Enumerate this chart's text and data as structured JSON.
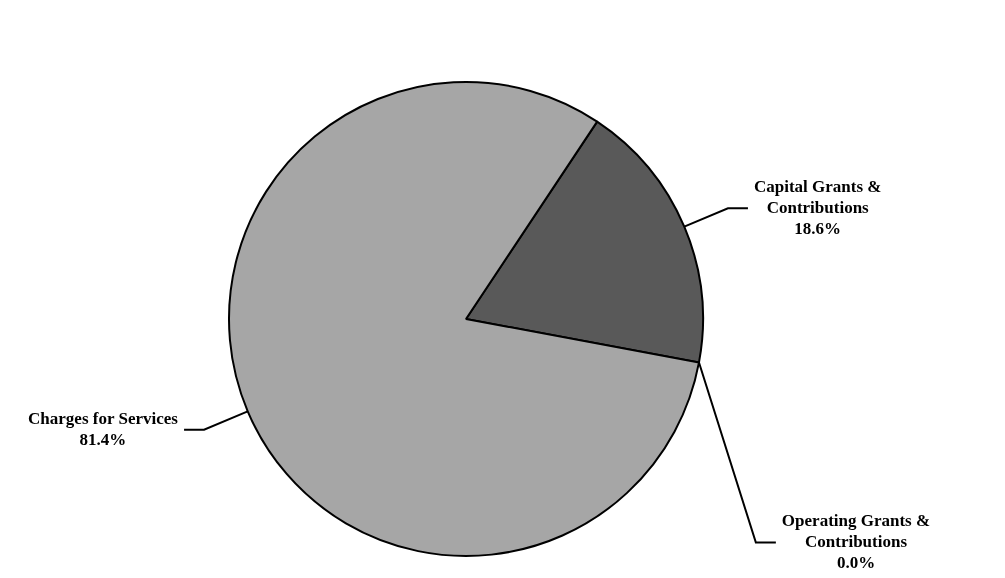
{
  "chart_data": {
    "type": "pie",
    "categories": [
      "Capital Grants & Contributions",
      "Operating Grants & Contributions",
      "Charges for Services"
    ],
    "values": [
      18.6,
      0.0,
      81.4
    ],
    "value_labels": [
      "18.6%",
      "0.0%",
      "81.4%"
    ],
    "colors": [
      "#595959",
      "#808080",
      "#a6a6a6"
    ]
  }
}
